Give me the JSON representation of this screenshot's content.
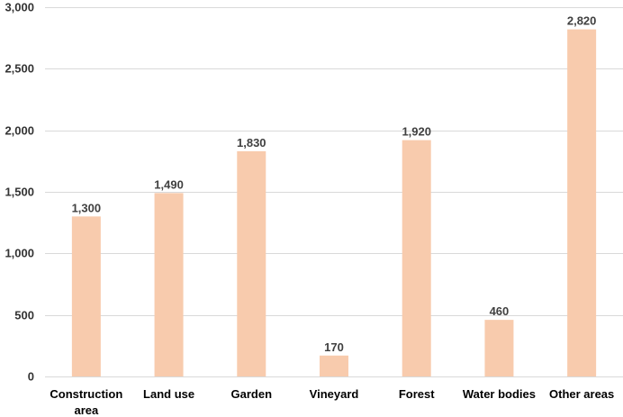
{
  "chart_data": {
    "type": "bar",
    "categories": [
      [
        "Construction",
        "area"
      ],
      [
        "Land use"
      ],
      [
        "Garden"
      ],
      [
        "Vineyard"
      ],
      [
        "Forest"
      ],
      [
        "Water bodies"
      ],
      [
        "Other areas"
      ]
    ],
    "values": [
      1300,
      1490,
      1830,
      170,
      1920,
      460,
      2820
    ],
    "data_labels": [
      "1,300",
      "1,490",
      "1,830",
      "170",
      "1,920",
      "460",
      "2,820"
    ],
    "y_ticks": [
      0,
      500,
      1000,
      1500,
      2000,
      2500,
      3000
    ],
    "y_tick_labels": [
      "0",
      "500",
      "1,000",
      "1,500",
      "2,000",
      "2,500",
      "3,000"
    ],
    "ylim": [
      0,
      3000
    ],
    "grid": true,
    "legend": "none",
    "bar_color": "#f8cbad"
  }
}
